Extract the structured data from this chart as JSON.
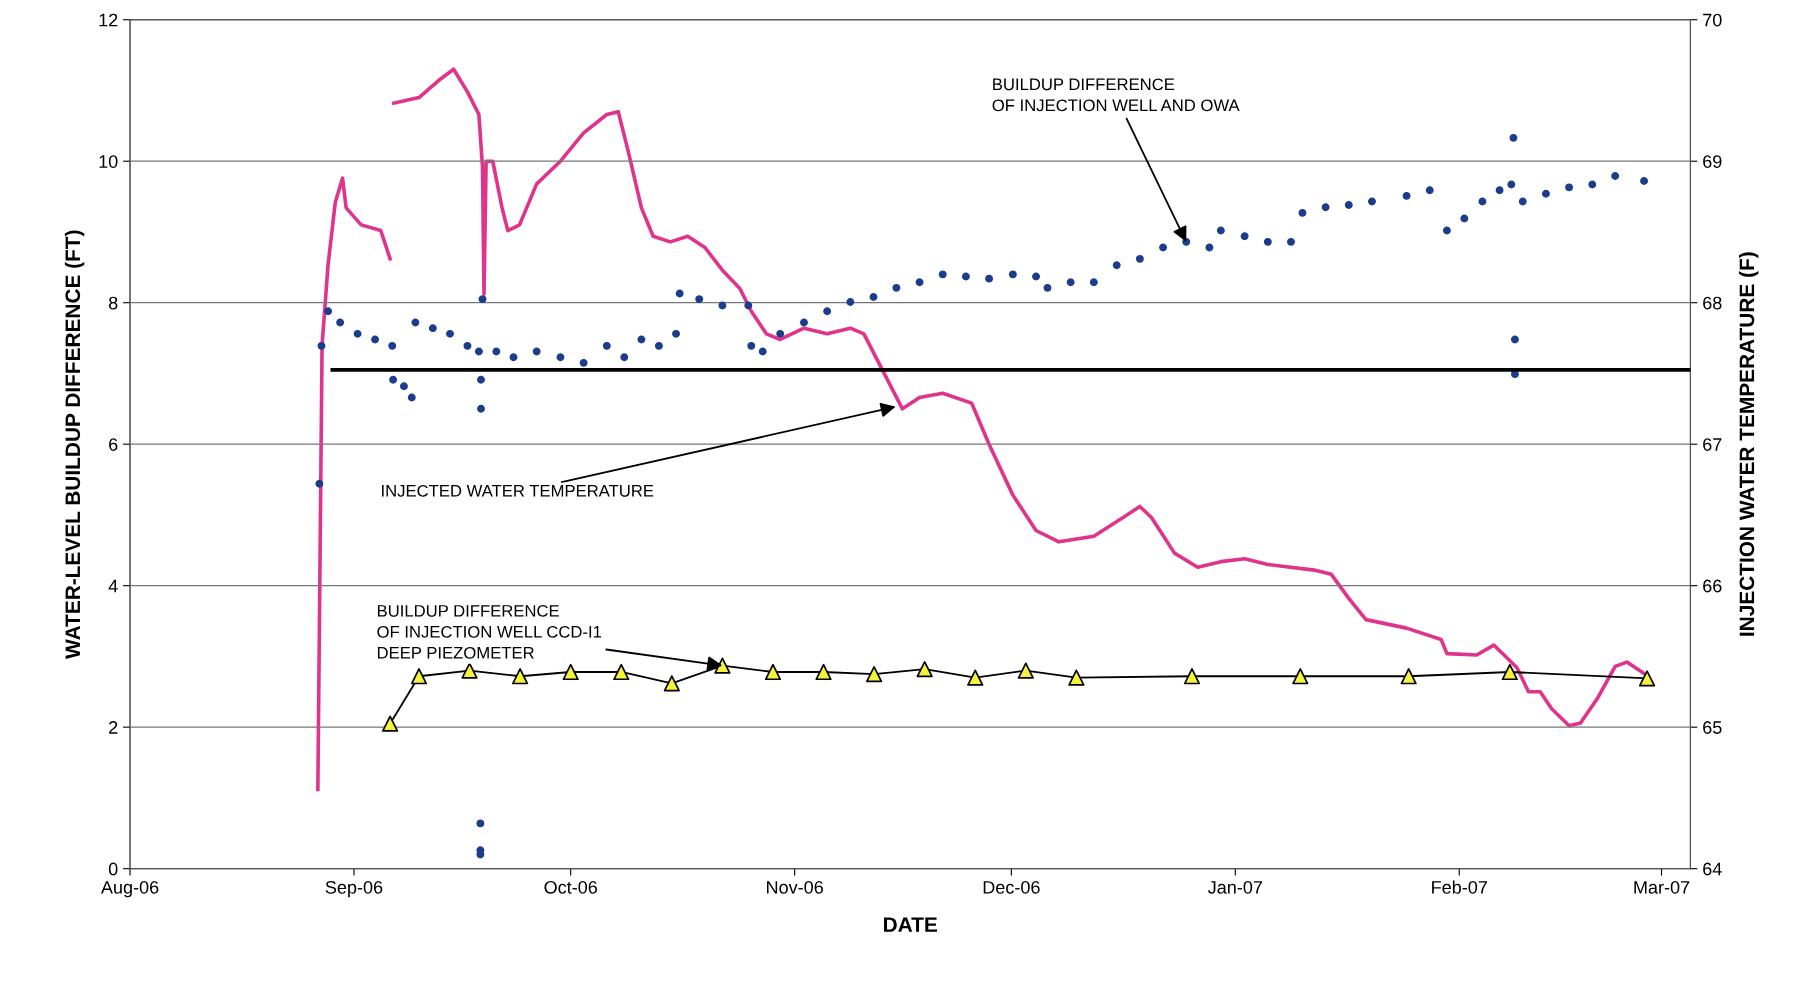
{
  "chart_data": {
    "type": "line",
    "xlabel": "DATE",
    "ylabel": "WATER-LEVEL BUILDUP DIFFERENCE (FT)",
    "y2label": "INJECTION WATER TEMPERATURE (F)",
    "xlim": [
      "2006-08-01",
      "2007-03-05"
    ],
    "xticks": [
      {
        "value": "2006-08-01",
        "label": "Aug-06"
      },
      {
        "value": "2006-09-01",
        "label": "Sep-06"
      },
      {
        "value": "2006-10-01",
        "label": "Oct-06"
      },
      {
        "value": "2006-11-01",
        "label": "Nov-06"
      },
      {
        "value": "2006-12-01",
        "label": "Dec-06"
      },
      {
        "value": "2007-01-01",
        "label": "Jan-07"
      },
      {
        "value": "2007-02-01",
        "label": "Feb-07"
      },
      {
        "value": "2007-03-01",
        "label": "Mar-07"
      }
    ],
    "ylim": [
      0,
      12
    ],
    "yticks": [
      0,
      2,
      4,
      6,
      8,
      10,
      12
    ],
    "y2lim": [
      64,
      70
    ],
    "y2ticks": [
      64,
      65,
      66,
      67,
      68,
      69,
      70
    ],
    "grid": "y",
    "series": [
      {
        "type": "scatter",
        "marker": "circle",
        "color": "#1c3c8c",
        "x": [
          "2006-08-27T05:00",
          "2006-08-27T12:00",
          "2006-08-28T10:00",
          "2006-08-30T02:00",
          "2006-09-01T12:00",
          "2006-09-03T22:00",
          "2006-09-06T07:00",
          "2006-09-06T10:00",
          "2006-09-07T22:00",
          "2006-09-09",
          "2006-09-09T12:00",
          "2006-09-11T22:00",
          "2006-09-14T07:00",
          "2006-09-16T17:00",
          "2006-09-18T07:00",
          "2006-09-18T14:00",
          "2006-09-18T14:00",
          "2006-09-18T19:00",
          "2006-09-18T12:00",
          "2006-09-18T12:00",
          "2006-09-18T12:00",
          "2006-09-20T17:00",
          "2006-09-23T02:00",
          "2006-09-26T07:00",
          "2006-09-29T14:00",
          "2006-10-02T19:00",
          "2006-10-06",
          "2006-10-08T10:00",
          "2006-10-10T19:00",
          "2006-10-13T05:00",
          "2006-10-15T14:00",
          "2006-10-16T02:00",
          "2006-10-18T19:00",
          "2006-10-22",
          "2006-10-25T14:00",
          "2006-10-26",
          "2006-10-27T14:00",
          "2006-10-30",
          "2006-11-02T07:00",
          "2006-11-05T12:00",
          "2006-11-08T17:00",
          "2006-11-11T22:00",
          "2006-11-15T02:00",
          "2006-11-18T07:00",
          "2006-11-21T12:00",
          "2006-11-24T17:00",
          "2006-11-27T22:00",
          "2006-12-01T05:00",
          "2006-12-04T10:00",
          "2006-12-06",
          "2006-12-09T05:00",
          "2006-12-12T10:00",
          "2006-12-15T14:00",
          "2006-12-18T19:00",
          "2006-12-22",
          "2006-12-25T05:00",
          "2006-12-28T10:00",
          "2006-12-30",
          "2007-01-02T07:00",
          "2007-01-05T12:00",
          "2007-01-08T17:00",
          "2007-01-10T07:00",
          "2007-01-13T12:00",
          "2007-01-16T17:00",
          "2007-01-19T22:00",
          "2007-01-24T17:00",
          "2007-01-27T22:00",
          "2007-01-30T07:00",
          "2007-02-01T17:00",
          "2007-02-04T05:00",
          "2007-02-06T14:00",
          "2007-02-08T05:00",
          "2007-02-08T12:00",
          "2007-02-08T17:00",
          "2007-02-08T17:00",
          "2007-02-09T19:00",
          "2007-02-13",
          "2007-02-16T05:00",
          "2007-02-19T10:00",
          "2007-02-22T14:00",
          "2007-02-26T14:00"
        ],
        "values": [
          5.44,
          7.39,
          7.88,
          7.72,
          7.56,
          7.48,
          7.39,
          6.91,
          6.82,
          6.66,
          7.72,
          7.64,
          7.56,
          7.39,
          7.31,
          6.91,
          6.5,
          8.05,
          0.64,
          0.26,
          0.2,
          7.31,
          7.23,
          7.31,
          7.23,
          7.15,
          7.39,
          7.23,
          7.48,
          7.39,
          7.56,
          8.13,
          8.05,
          7.96,
          7.96,
          7.39,
          7.31,
          7.56,
          7.72,
          7.88,
          8.01,
          8.08,
          8.21,
          8.29,
          8.4,
          8.37,
          8.34,
          8.4,
          8.37,
          8.21,
          8.29,
          8.29,
          8.53,
          8.62,
          8.78,
          8.86,
          8.78,
          9.02,
          8.94,
          8.86,
          8.86,
          9.27,
          9.35,
          9.38,
          9.43,
          9.51,
          9.59,
          9.02,
          9.19,
          9.43,
          9.59,
          9.67,
          10.33,
          7.48,
          6.99,
          9.43,
          9.54,
          9.63,
          9.67,
          9.79,
          9.72
        ]
      },
      {
        "axis": "y2",
        "marker": "none",
        "line_style": "solid",
        "color": "#e0348c",
        "x": [
          "2006-08-27",
          "2006-08-27T14:00",
          "2006-08-28T10:00",
          "2006-08-29T10:00",
          "2006-08-30T10:00",
          "2006-08-30T22:00",
          "2006-09-02",
          "2006-09-04T17:00",
          "2006-09-06",
          "2006-09-06T06:00",
          "2006-09-06T12:00",
          "2006-09-10",
          "2006-09-12T17:00",
          "2006-09-14T19:00",
          "2006-09-16T17:00",
          "2006-09-18T07:00",
          "2006-09-18T19:00",
          "2006-09-19",
          "2006-09-19T07:00",
          "2006-09-20T05:00",
          "2006-09-21T12:00",
          "2006-09-22T07:00",
          "2006-09-23T22:00",
          "2006-09-26T07:00",
          "2006-09-29T14:00",
          "2006-10-02T19:00",
          "2006-10-06",
          "2006-10-07T14:00",
          "2006-10-08T22:00",
          "2006-10-10T19:00",
          "2006-10-12T10:00",
          "2006-10-14T19:00",
          "2006-10-17T05:00",
          "2006-10-19T14:00",
          "2006-10-22",
          "2006-10-24T10:00",
          "2006-10-26",
          "2006-10-28T02:00",
          "2006-10-30",
          "2006-11-02T07:00",
          "2006-11-05T12:00",
          "2006-11-08T17:00",
          "2006-11-10T14:00",
          "2006-11-13T12:00",
          "2006-11-15T22:00",
          "2006-11-18T07:00",
          "2006-11-21T12:00",
          "2006-11-25T12:00",
          "2006-11-27T22:00",
          "2006-12-01T05:00",
          "2006-12-04T10:00",
          "2006-12-07T14:00",
          "2006-12-12T10:00",
          "2006-12-16T10:00",
          "2006-12-18T19:00",
          "2006-12-20T10:00",
          "2006-12-23T14:00",
          "2006-12-26T19:00",
          "2006-12-30",
          "2007-01-02T07:00",
          "2007-01-05T12:00",
          "2007-01-11T22:00",
          "2007-01-14T07:00",
          "2007-01-16T17:00",
          "2007-01-19T02:00",
          "2007-01-24T17:00",
          "2007-01-29T12:00",
          "2007-01-30T07:00",
          "2007-02-03T10:00",
          "2007-02-05T19:00",
          "2007-02-07T10:00",
          "2007-02-09",
          "2007-02-10T14:00",
          "2007-02-12T05:00",
          "2007-02-13T19:00",
          "2007-02-16T05:00",
          "2007-02-17T19:00",
          "2007-02-20T05:00",
          "2007-02-22T14:00",
          "2007-02-24T05:00",
          "2007-02-26T14:00"
        ],
        "values": [
          64.56,
          67.7,
          68.27,
          68.71,
          68.88,
          68.67,
          68.55,
          68.51,
          68.31,
          null,
          69.41,
          69.45,
          69.57,
          69.65,
          69.49,
          69.33,
          68.96,
          68.06,
          69.0,
          69.0,
          68.67,
          68.51,
          68.55,
          68.84,
          69.0,
          69.2,
          69.33,
          69.35,
          69.08,
          68.67,
          68.47,
          68.43,
          68.47,
          68.39,
          68.23,
          68.1,
          67.94,
          67.78,
          67.74,
          67.82,
          67.78,
          67.82,
          67.78,
          67.49,
          67.25,
          67.33,
          67.36,
          67.29,
          67.0,
          66.64,
          66.39,
          66.31,
          66.35,
          66.48,
          66.56,
          66.48,
          66.23,
          66.13,
          66.17,
          66.19,
          66.15,
          66.11,
          66.08,
          65.91,
          65.76,
          65.7,
          65.62,
          65.52,
          65.51,
          65.58,
          65.5,
          65.42,
          65.25,
          65.25,
          65.13,
          65.01,
          65.03,
          65.21,
          65.43,
          65.46,
          65.38
        ]
      },
      {
        "marker": "none",
        "line_style": "solid",
        "color": "#000000",
        "x": [
          "2006-08-29",
          "2007-03-05"
        ],
        "values": [
          7.05,
          7.05
        ]
      },
      {
        "marker": "triangle",
        "line_style": "solid",
        "color": "#000000",
        "colors": [
          "#f4f23a",
          "#f4f23a",
          "#f4f23a",
          "#f4f23a",
          "#f4f23a",
          "#f4f23a",
          "#f4f23a",
          "#f4f23a",
          "#f4f23a",
          "#f4f23a",
          "#f4f23a",
          "#f4f23a",
          "#f4f23a",
          "#f4f23a",
          "#f4f23a",
          "#f4f23a",
          "#f4f23a",
          "#f4f23a",
          "#f4f23a",
          "#f4f23a"
        ],
        "x": [
          "2006-09-06",
          "2006-09-10",
          "2006-09-17",
          "2006-09-24",
          "2006-10-01",
          "2006-10-08",
          "2006-10-15",
          "2006-10-22",
          "2006-10-29",
          "2006-11-05",
          "2006-11-12",
          "2006-11-19",
          "2006-11-26",
          "2006-12-03",
          "2006-12-10",
          "2006-12-26",
          "2007-01-10",
          "2007-01-25",
          "2007-02-08",
          "2007-02-27"
        ],
        "values": [
          2.05,
          2.72,
          2.8,
          2.72,
          2.78,
          2.78,
          2.62,
          2.87,
          2.78,
          2.78,
          2.75,
          2.82,
          2.7,
          2.8,
          2.7,
          2.72,
          2.72,
          2.72,
          2.78,
          2.69
        ]
      }
    ],
    "annotations": [
      {
        "text": "BUILDUP DIFFERENCE\nOF INJECTION WELL AND OWA",
        "x": "2006-12-25T05:00",
        "y": 8.86
      },
      {
        "text": "INJECTED WATER TEMPERATURE",
        "x": "2006-11-15",
        "y": 6.53
      },
      {
        "text": "BUILDUP DIFFERENCE\nOF INJECTION WELL CCD-I1\nDEEP PIEZOMETER",
        "x": "2006-10-22",
        "y": 2.87
      }
    ]
  }
}
